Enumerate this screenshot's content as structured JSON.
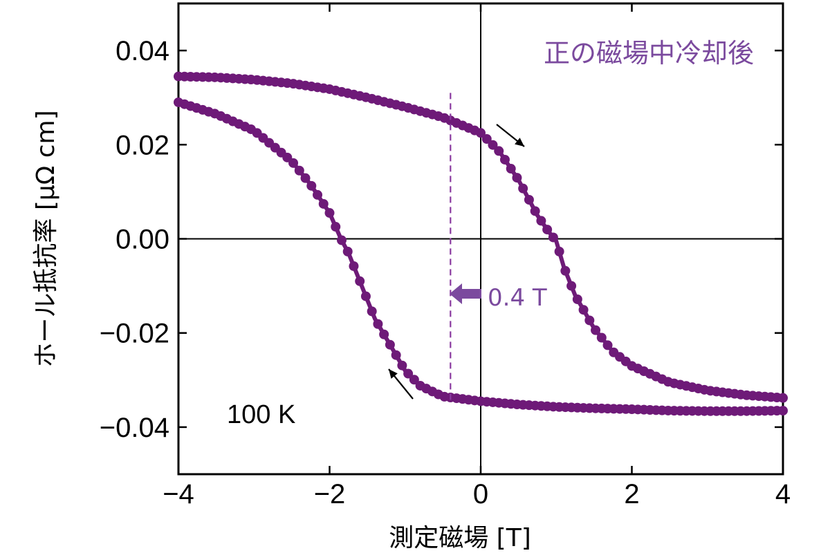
{
  "chart_data": {
    "type": "scatter",
    "title": "",
    "xlabel": "測定磁場 [T]",
    "ylabel": "ホール抵抗率 [μΩ cm]",
    "xlim": [
      -4,
      4
    ],
    "ylim": [
      -0.05,
      0.05
    ],
    "x_ticks": [
      -4,
      -2,
      0,
      2,
      4
    ],
    "x_tick_labels": [
      "−4",
      "−2",
      "0",
      "2",
      "4"
    ],
    "y_ticks": [
      -0.04,
      -0.02,
      0.0,
      0.02,
      0.04
    ],
    "y_tick_labels": [
      "−0.04",
      "−0.02",
      "0.00",
      "0.02",
      "0.04"
    ],
    "grid": false,
    "legend": "none",
    "annotations": {
      "condition": "正の磁場中冷却後",
      "temperature": "100 K",
      "shift": "0.4 T",
      "dashed_line_x": -0.4
    },
    "colors": {
      "series": "#6e1a78",
      "annotation": "#7b4a9e",
      "dashed": "#8a3aa0",
      "axes": "#000000"
    },
    "series": [
      {
        "x": [
          -4.0,
          -3.5,
          -3.0,
          -2.5,
          -2.0,
          -1.5,
          -1.0,
          -0.5,
          0.0,
          0.25,
          0.5,
          0.75,
          0.9,
          1.0,
          1.1,
          1.25,
          1.5,
          1.75,
          2.0,
          2.5,
          3.0,
          3.5,
          4.0
        ],
        "y": [
          0.0345,
          0.0343,
          0.0338,
          0.033,
          0.0318,
          0.03,
          0.028,
          0.0258,
          0.0225,
          0.0185,
          0.0125,
          0.005,
          0.0015,
          -0.0005,
          -0.006,
          -0.012,
          -0.019,
          -0.024,
          -0.027,
          -0.0305,
          -0.0322,
          -0.0332,
          -0.0338
        ]
      },
      {
        "x": [
          4.0,
          3.5,
          3.0,
          2.5,
          2.0,
          1.5,
          1.0,
          0.5,
          0.0,
          -0.5,
          -0.8,
          -1.0,
          -1.2,
          -1.4,
          -1.6,
          -1.75,
          -1.85,
          -2.0,
          -2.25,
          -2.5,
          -3.0,
          -3.5,
          -4.0
        ],
        "y": [
          -0.0365,
          -0.0366,
          -0.0366,
          -0.0365,
          -0.0362,
          -0.036,
          -0.0357,
          -0.0352,
          -0.0345,
          -0.0335,
          -0.0312,
          -0.028,
          -0.0225,
          -0.017,
          -0.009,
          -0.003,
          0.0,
          0.0055,
          0.0115,
          0.0165,
          0.023,
          0.0265,
          0.029
        ]
      }
    ]
  }
}
